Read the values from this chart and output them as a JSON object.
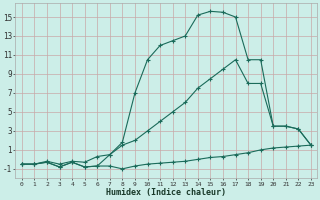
{
  "xlabel": "Humidex (Indice chaleur)",
  "bg_color": "#cceee8",
  "grid_color": "#c8a8a8",
  "line_color": "#1a6b5a",
  "ylim": [
    -2,
    16.5
  ],
  "xlim": [
    -0.5,
    23.5
  ],
  "yticks": [
    -1,
    1,
    3,
    5,
    7,
    9,
    11,
    13,
    15
  ],
  "xticks": [
    0,
    1,
    2,
    3,
    4,
    5,
    6,
    7,
    8,
    9,
    10,
    11,
    12,
    13,
    14,
    15,
    16,
    17,
    18,
    19,
    20,
    21,
    22,
    23
  ],
  "line1_x": [
    0,
    1,
    2,
    3,
    4,
    5,
    6,
    7,
    8,
    9,
    10,
    11,
    12,
    13,
    14,
    15,
    16,
    17,
    18,
    19,
    20,
    21,
    22,
    23
  ],
  "line1_y": [
    -0.5,
    -0.5,
    -0.3,
    -0.8,
    -0.3,
    -0.8,
    -0.7,
    -0.7,
    -1.0,
    -0.7,
    -0.5,
    -0.4,
    -0.3,
    -0.2,
    0.0,
    0.2,
    0.3,
    0.5,
    0.7,
    1.0,
    1.2,
    1.3,
    1.4,
    1.5
  ],
  "line2_x": [
    0,
    1,
    2,
    3,
    4,
    5,
    6,
    7,
    8,
    9,
    10,
    11,
    12,
    13,
    14,
    15,
    16,
    17,
    18,
    19,
    20,
    21,
    22,
    23
  ],
  "line2_y": [
    -0.5,
    -0.5,
    -0.3,
    -0.8,
    -0.3,
    -0.8,
    -0.7,
    0.5,
    1.8,
    7.0,
    10.5,
    12.0,
    12.5,
    13.0,
    15.2,
    15.6,
    15.5,
    15.0,
    10.5,
    10.5,
    3.5,
    3.5,
    3.2,
    1.5
  ],
  "line3_x": [
    0,
    1,
    2,
    3,
    4,
    5,
    6,
    7,
    8,
    9,
    10,
    11,
    12,
    13,
    14,
    15,
    16,
    17,
    18,
    19,
    20,
    21,
    22,
    23
  ],
  "line3_y": [
    -0.5,
    -0.5,
    -0.2,
    -0.5,
    -0.2,
    -0.3,
    0.3,
    0.5,
    1.5,
    2.0,
    3.0,
    4.0,
    5.0,
    6.0,
    7.5,
    8.5,
    9.5,
    10.5,
    8.0,
    8.0,
    3.5,
    3.5,
    3.2,
    1.5
  ]
}
